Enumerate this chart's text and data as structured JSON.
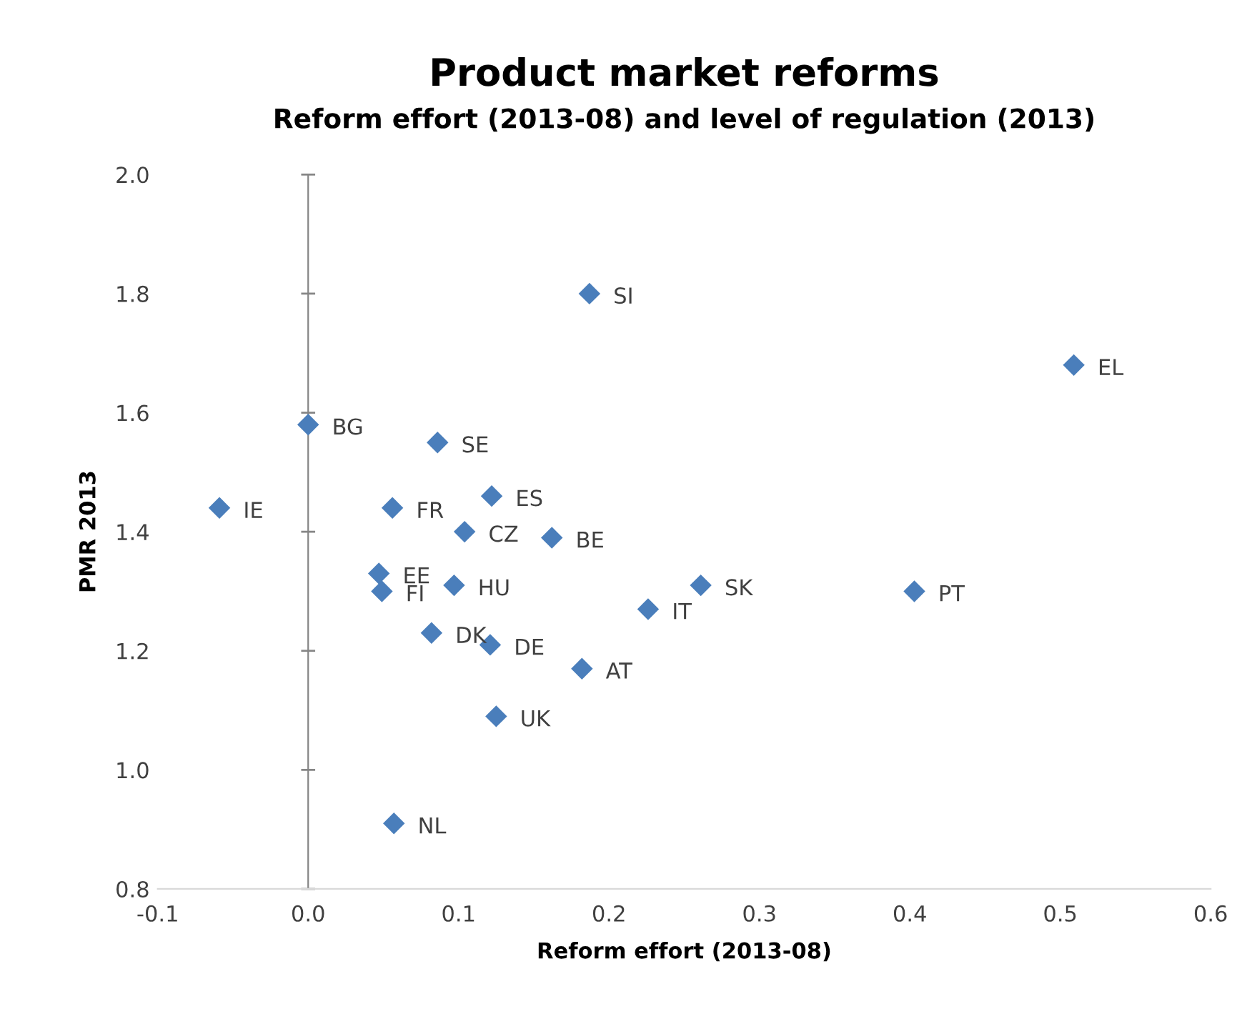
{
  "chart_data": {
    "type": "scatter",
    "title": "Product market reforms",
    "subtitle": "Reform effort (2013-08) and level of regulation (2013)",
    "xlabel": "Reform effort (2013-08)",
    "ylabel": "PMR 2013",
    "marker": "diamond",
    "xlim": [
      -0.1,
      0.6
    ],
    "ylim": [
      0.8,
      2.0
    ],
    "xticks": [
      -0.1,
      {
        "value": 0,
        "label": "0.0"
      },
      0.1,
      0.2,
      0.3,
      0.4,
      0.5,
      0.6
    ],
    "yticks": [
      0.8,
      {
        "value": 1,
        "label": "1.0"
      },
      1.2,
      1.4,
      1.6,
      1.8,
      {
        "value": 2,
        "label": "2.0"
      }
    ],
    "series": [
      {
        "color": "#4a7ebb",
        "x": [
          0.187,
          0.509,
          0.0,
          0.086,
          -0.059,
          0.056,
          0.122,
          0.104,
          0.162,
          0.047,
          0.049,
          0.097,
          0.261,
          0.403,
          0.226,
          0.082,
          0.121,
          0.182,
          0.125,
          0.057
        ],
        "values": [
          1.8,
          1.68,
          1.58,
          1.55,
          1.44,
          1.44,
          1.46,
          1.4,
          1.39,
          1.33,
          1.3,
          1.31,
          1.31,
          1.3,
          1.27,
          1.23,
          1.21,
          1.17,
          1.09,
          0.91
        ]
      }
    ],
    "annotations": [
      {
        "text": "SI",
        "x": 0.187,
        "y": 1.8
      },
      {
        "text": "EL",
        "x": 0.509,
        "y": 1.68
      },
      {
        "text": "BG",
        "x": 0.0,
        "y": 1.58
      },
      {
        "text": "SE",
        "x": 0.086,
        "y": 1.55
      },
      {
        "text": "IE",
        "x": -0.059,
        "y": 1.44
      },
      {
        "text": "FR",
        "x": 0.056,
        "y": 1.44
      },
      {
        "text": "ES",
        "x": 0.122,
        "y": 1.46
      },
      {
        "text": "CZ",
        "x": 0.104,
        "y": 1.4
      },
      {
        "text": "BE",
        "x": 0.162,
        "y": 1.39
      },
      {
        "text": "EE",
        "x": 0.047,
        "y": 1.33
      },
      {
        "text": "FI",
        "x": 0.049,
        "y": 1.3
      },
      {
        "text": "HU",
        "x": 0.097,
        "y": 1.31
      },
      {
        "text": "SK",
        "x": 0.261,
        "y": 1.31
      },
      {
        "text": "PT",
        "x": 0.403,
        "y": 1.3
      },
      {
        "text": "IT",
        "x": 0.226,
        "y": 1.27
      },
      {
        "text": "DK",
        "x": 0.082,
        "y": 1.23
      },
      {
        "text": "DE",
        "x": 0.121,
        "y": 1.21
      },
      {
        "text": "AT",
        "x": 0.182,
        "y": 1.17
      },
      {
        "text": "UK",
        "x": 0.125,
        "y": 1.09
      },
      {
        "text": "NL",
        "x": 0.057,
        "y": 0.91
      }
    ]
  }
}
